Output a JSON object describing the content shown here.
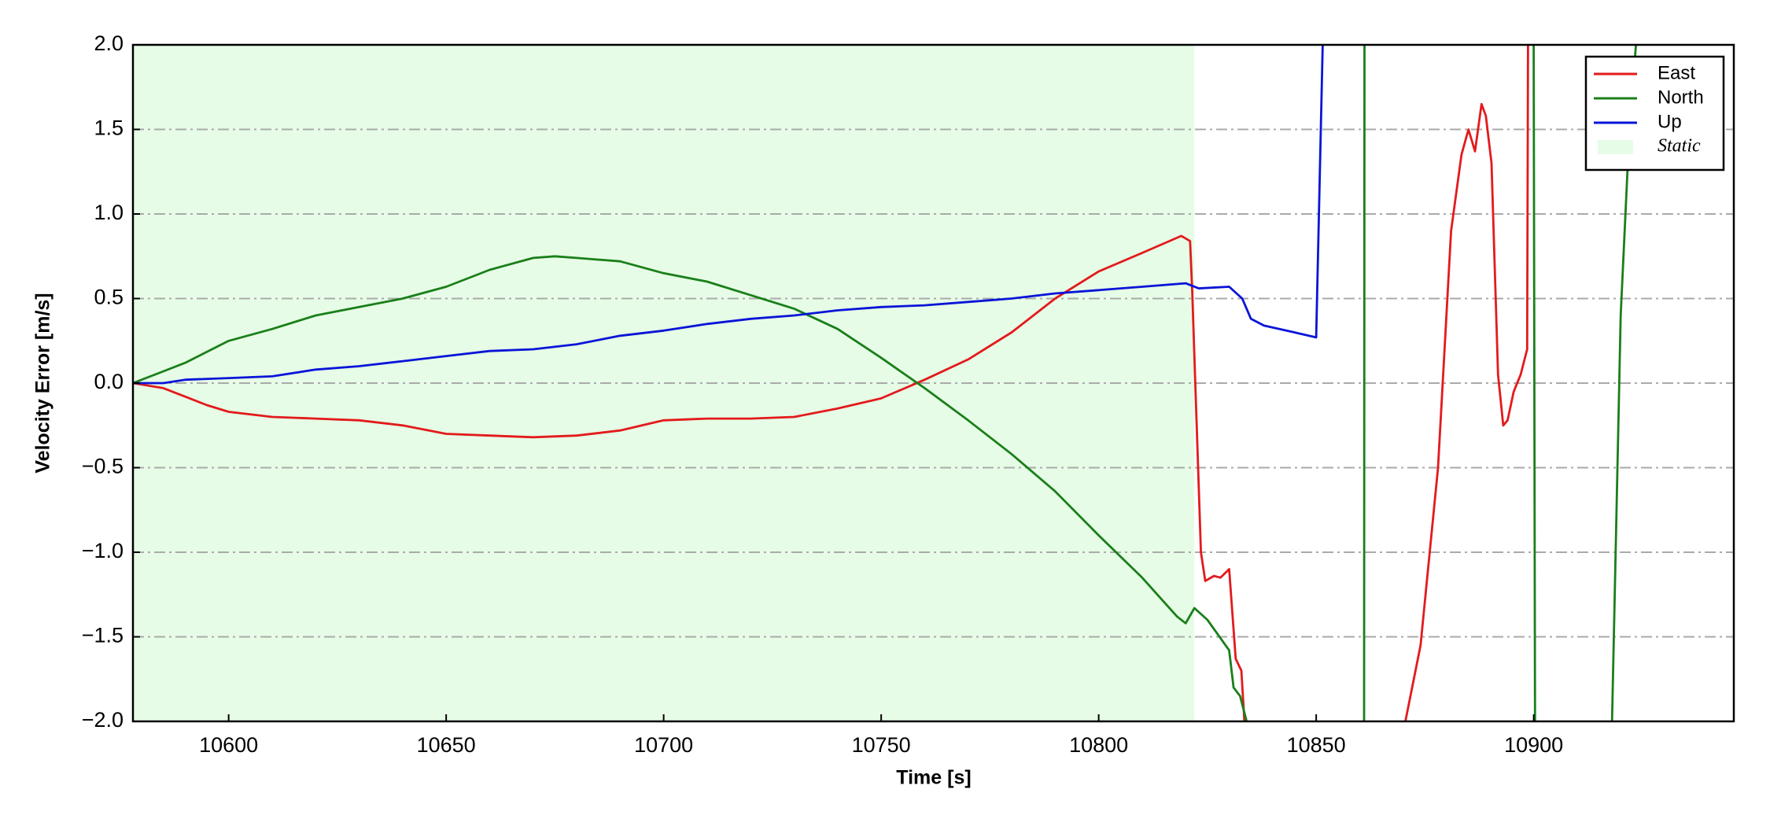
{
  "chart_data": {
    "type": "line",
    "xlabel": "Time [s]",
    "ylabel": "Velocity Error [m/s]",
    "xlim": [
      10578,
      10946
    ],
    "ylim": [
      -2.0,
      2.0
    ],
    "xticks": [
      10600,
      10650,
      10700,
      10750,
      10800,
      10850,
      10900
    ],
    "yticks": [
      {
        "value": -2.0,
        "label": "−2.0"
      },
      {
        "value": -1.5,
        "label": "−1.5"
      },
      {
        "value": -1.0,
        "label": "−1.0"
      },
      {
        "value": -0.5,
        "label": "−0.5"
      },
      {
        "value": 0.0,
        "label": "0.0"
      },
      {
        "value": 0.5,
        "label": "0.5"
      },
      {
        "value": 1.0,
        "label": "1.0"
      },
      {
        "value": 1.5,
        "label": "1.5"
      },
      {
        "value": 2.0,
        "label": "2.0"
      }
    ],
    "grid": true,
    "legend": "upper right",
    "shaded_region": {
      "label": "Static",
      "x0": 10578,
      "x1": 10822,
      "color": "#e6fce6"
    },
    "series": [
      {
        "name": "East",
        "color": "#e31a1c",
        "x": [
          10578,
          10585,
          10590,
          10595,
          10600,
          10610,
          10620,
          10630,
          10640,
          10650,
          10660,
          10670,
          10680,
          10690,
          10700,
          10710,
          10720,
          10730,
          10740,
          10750,
          10760,
          10770,
          10780,
          10790,
          10800,
          10810,
          10819,
          10821,
          10821.5,
          10823.5,
          10824.5,
          10826.5,
          10828,
          10830,
          10831.5,
          10832.8,
          10833.5,
          10850,
          10870.5,
          10874,
          10878,
          10881,
          10883.4,
          10885,
          10886.5,
          10888,
          10889,
          10890.3,
          10891.8,
          10893,
          10894,
          10895.4,
          10897,
          10898.5,
          10898.7
        ],
        "values": [
          0,
          -0.03,
          -0.08,
          -0.13,
          -0.17,
          -0.2,
          -0.21,
          -0.22,
          -0.25,
          -0.3,
          -0.31,
          -0.32,
          -0.31,
          -0.28,
          -0.22,
          -0.21,
          -0.21,
          -0.2,
          -0.15,
          -0.09,
          0.02,
          0.14,
          0.3,
          0.5,
          0.66,
          0.77,
          0.87,
          0.84,
          0.55,
          -1.0,
          -1.17,
          -1.14,
          -1.15,
          -1.1,
          -1.63,
          -1.7,
          -2.0,
          null,
          -2.0,
          -1.55,
          -0.5,
          0.9,
          1.35,
          1.5,
          1.37,
          1.65,
          1.58,
          1.3,
          0.05,
          -0.25,
          -0.22,
          -0.05,
          0.05,
          0.2,
          2.0
        ]
      },
      {
        "name": "North",
        "color": "#1a7f1a",
        "x": [
          10578,
          10585,
          10590,
          10600,
          10610,
          10620,
          10630,
          10640,
          10650,
          10660,
          10670,
          10675,
          10680,
          10690,
          10700,
          10710,
          10720,
          10730,
          10740,
          10750,
          10760,
          10770,
          10780,
          10790,
          10800,
          10810,
          10818,
          10820,
          10822,
          10825,
          10830,
          10831,
          10832.5,
          10834,
          10845,
          10861,
          10861.1,
          10880,
          10900,
          10900.3,
          10910,
          10918,
          10920,
          10922,
          10923.5
        ],
        "values": [
          0,
          0.07,
          0.12,
          0.25,
          0.32,
          0.4,
          0.45,
          0.5,
          0.57,
          0.67,
          0.74,
          0.75,
          0.74,
          0.72,
          0.65,
          0.6,
          0.52,
          0.44,
          0.32,
          0.15,
          -0.03,
          -0.22,
          -0.42,
          -0.64,
          -0.9,
          -1.15,
          -1.38,
          -1.42,
          -1.33,
          -1.4,
          -1.58,
          -1.8,
          -1.85,
          -2.0,
          null,
          -2.0,
          2.0,
          null,
          2.0,
          -2.0,
          null,
          -2.0,
          0.4,
          1.5,
          2.0
        ]
      },
      {
        "name": "Up",
        "color": "#0a14d8",
        "x": [
          10578,
          10585,
          10590,
          10600,
          10610,
          10620,
          10630,
          10640,
          10650,
          10660,
          10670,
          10680,
          10690,
          10700,
          10710,
          10720,
          10730,
          10740,
          10750,
          10760,
          10770,
          10780,
          10790,
          10800,
          10810,
          10820,
          10823,
          10830,
          10833,
          10835,
          10838,
          10845,
          10850,
          10851.5
        ],
        "values": [
          0,
          0,
          0.02,
          0.03,
          0.04,
          0.08,
          0.1,
          0.13,
          0.16,
          0.19,
          0.2,
          0.23,
          0.28,
          0.31,
          0.35,
          0.38,
          0.4,
          0.43,
          0.45,
          0.46,
          0.48,
          0.5,
          0.53,
          0.55,
          0.57,
          0.59,
          0.56,
          0.57,
          0.5,
          0.38,
          0.34,
          0.3,
          0.27,
          2.0
        ]
      }
    ]
  }
}
